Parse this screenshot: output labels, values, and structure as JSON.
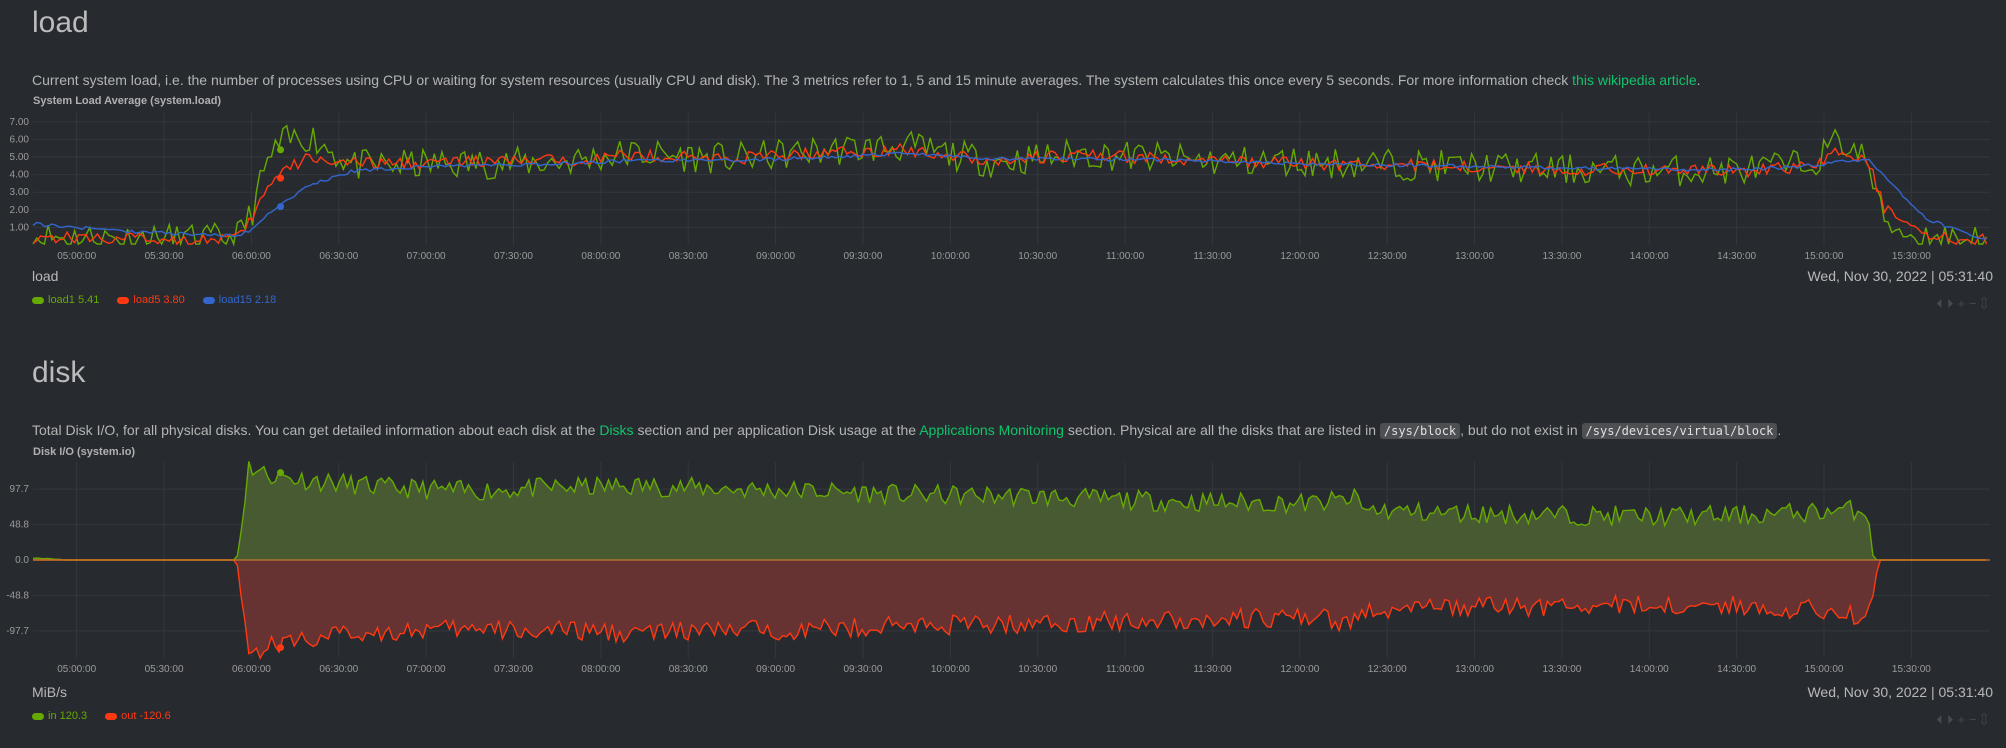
{
  "load": {
    "title": "load",
    "desc_pre": "Current system load, i.e. the number of processes using CPU or waiting for system resources (usually CPU and disk). The 3 metrics refer to 1, 5 and 15 minute averages. The system calculates this once every 5 seconds. For more information check ",
    "desc_link": "this wikipedia article",
    "desc_post": ".",
    "units": "load",
    "date": "Wed, Nov 30, 2022",
    "time": "05:31:40",
    "legend": [
      {
        "name": "load1",
        "value": "5.41",
        "color": "#66aa00"
      },
      {
        "name": "load5",
        "value": "3.80",
        "color": "#fe3912"
      },
      {
        "name": "load15",
        "value": "2.18",
        "color": "#3366cc"
      }
    ]
  },
  "disk": {
    "title": "disk",
    "desc_1": "Total Disk I/O, for all physical disks. You can get detailed information about each disk at the ",
    "link_1": "Disks",
    "desc_2": " section and per application Disk usage at the ",
    "link_2": "Applications Monitoring",
    "desc_3": " section. Physical are all the disks that are listed in ",
    "code_1": "/sys/block",
    "desc_4": ", but do not exist in ",
    "code_2": "/sys/devices/virtual/block",
    "desc_5": ".",
    "units": "MiB/s",
    "date": "Wed, Nov 30, 2022",
    "time": "05:31:40",
    "legend": [
      {
        "name": "in",
        "value": "120.3",
        "color": "#66aa00"
      },
      {
        "name": "out",
        "value": "-120.6",
        "color": "#fe3912"
      }
    ]
  },
  "toolbar_glyphs": "⏴⏵+−⇕",
  "chart_data": [
    {
      "type": "line",
      "title": "System Load Average (system.load)",
      "ylabel": "load",
      "y_ticks": [
        "7.00",
        "6.00",
        "5.00",
        "4.00",
        "3.00",
        "2.00",
        "1.00"
      ],
      "ylim": [
        0,
        7.5
      ],
      "x_ticks": [
        "05:00:00",
        "05:30:00",
        "06:00:00",
        "06:30:00",
        "07:00:00",
        "07:30:00",
        "08:00:00",
        "08:30:00",
        "09:00:00",
        "09:30:00",
        "10:00:00",
        "10:30:00",
        "11:00:00",
        "11:30:00",
        "12:00:00",
        "12:30:00",
        "13:00:00",
        "13:30:00",
        "14:00:00",
        "14:30:00",
        "15:00:00",
        "15:30:00"
      ],
      "xlim_minutes": [
        0,
        672
      ],
      "series": [
        {
          "name": "load1",
          "color": "#66aa00",
          "jitter": 0.9,
          "points": [
            [
              0,
              0.5
            ],
            [
              20,
              0.4
            ],
            [
              60,
              0.3
            ],
            [
              70,
              0.4
            ],
            [
              75,
              1.8
            ],
            [
              80,
              4.5
            ],
            [
              85,
              5.8
            ],
            [
              95,
              6.2
            ],
            [
              110,
              4.5
            ],
            [
              140,
              4.6
            ],
            [
              180,
              4.7
            ],
            [
              205,
              5.2
            ],
            [
              240,
              4.9
            ],
            [
              275,
              5.4
            ],
            [
              300,
              5.6
            ],
            [
              330,
              4.7
            ],
            [
              360,
              5.2
            ],
            [
              400,
              4.8
            ],
            [
              440,
              4.7
            ],
            [
              485,
              4.5
            ],
            [
              520,
              4.3
            ],
            [
              560,
              4.2
            ],
            [
              590,
              4.3
            ],
            [
              610,
              4.6
            ],
            [
              615,
              5.2
            ],
            [
              620,
              6.0
            ],
            [
              630,
              4.8
            ],
            [
              635,
              1.5
            ],
            [
              645,
              0.5
            ],
            [
              670,
              0.4
            ]
          ]
        },
        {
          "name": "load5",
          "color": "#fe3912",
          "jitter": 0.35,
          "points": [
            [
              0,
              0.45
            ],
            [
              60,
              0.3
            ],
            [
              72,
              0.5
            ],
            [
              78,
              2.5
            ],
            [
              84,
              4.0
            ],
            [
              95,
              5.0
            ],
            [
              110,
              4.6
            ],
            [
              140,
              4.7
            ],
            [
              180,
              4.8
            ],
            [
              205,
              5.1
            ],
            [
              240,
              4.9
            ],
            [
              275,
              5.3
            ],
            [
              300,
              5.4
            ],
            [
              330,
              4.8
            ],
            [
              360,
              5.1
            ],
            [
              400,
              4.8
            ],
            [
              440,
              4.6
            ],
            [
              485,
              4.5
            ],
            [
              520,
              4.3
            ],
            [
              560,
              4.3
            ],
            [
              590,
              4.2
            ],
            [
              610,
              4.5
            ],
            [
              620,
              5.3
            ],
            [
              630,
              4.9
            ],
            [
              636,
              2.0
            ],
            [
              645,
              0.8
            ],
            [
              660,
              0.3
            ],
            [
              670,
              0.3
            ]
          ]
        },
        {
          "name": "load15",
          "color": "#3366cc",
          "jitter": 0.1,
          "points": [
            [
              0,
              1.2
            ],
            [
              30,
              0.8
            ],
            [
              70,
              0.5
            ],
            [
              75,
              0.9
            ],
            [
              84,
              2.2
            ],
            [
              95,
              3.4
            ],
            [
              110,
              4.2
            ],
            [
              140,
              4.5
            ],
            [
              180,
              4.6
            ],
            [
              205,
              4.8
            ],
            [
              240,
              4.8
            ],
            [
              275,
              5.0
            ],
            [
              300,
              5.2
            ],
            [
              330,
              4.9
            ],
            [
              360,
              4.9
            ],
            [
              400,
              4.8
            ],
            [
              440,
              4.6
            ],
            [
              485,
              4.5
            ],
            [
              520,
              4.4
            ],
            [
              560,
              4.3
            ],
            [
              590,
              4.3
            ],
            [
              610,
              4.5
            ],
            [
              630,
              4.9
            ],
            [
              638,
              3.5
            ],
            [
              650,
              1.5
            ],
            [
              670,
              0.3
            ]
          ]
        }
      ],
      "highlight_x": 85,
      "highlight_values": [
        5.41,
        3.8,
        2.18
      ]
    },
    {
      "type": "area",
      "title": "Disk I/O (system.io)",
      "ylabel": "MiB/s",
      "y_ticks": [
        "97.7",
        "48.8",
        "0.0",
        "-48.8",
        "-97.7"
      ],
      "y_tick_values": [
        97.7,
        48.8,
        0,
        -48.8,
        -97.7
      ],
      "ylim": [
        -135,
        135
      ],
      "x_ticks": [
        "05:00:00",
        "05:30:00",
        "06:00:00",
        "06:30:00",
        "07:00:00",
        "07:30:00",
        "08:00:00",
        "08:30:00",
        "09:00:00",
        "09:30:00",
        "10:00:00",
        "10:30:00",
        "11:00:00",
        "11:30:00",
        "12:00:00",
        "12:30:00",
        "13:00:00",
        "13:30:00",
        "14:00:00",
        "14:30:00",
        "15:00:00",
        "15:30:00"
      ],
      "xlim_minutes": [
        0,
        672
      ],
      "series": [
        {
          "name": "in",
          "color": "#66aa00",
          "fill": "#4a5d32",
          "jitter": 14,
          "points": [
            [
              0,
              3
            ],
            [
              5,
              2
            ],
            [
              10,
              0
            ],
            [
              70,
              0
            ],
            [
              72,
              60
            ],
            [
              74,
              130
            ],
            [
              80,
              118
            ],
            [
              90,
              112
            ],
            [
              120,
              100
            ],
            [
              150,
              95
            ],
            [
              180,
              100
            ],
            [
              210,
              102
            ],
            [
              240,
              98
            ],
            [
              270,
              95
            ],
            [
              300,
              90
            ],
            [
              340,
              88
            ],
            [
              360,
              85
            ],
            [
              380,
              82
            ],
            [
              400,
              80
            ],
            [
              440,
              78
            ],
            [
              455,
              85
            ],
            [
              456,
              70
            ],
            [
              480,
              65
            ],
            [
              520,
              62
            ],
            [
              560,
              60
            ],
            [
              590,
              62
            ],
            [
              620,
              68
            ],
            [
              630,
              70
            ],
            [
              632,
              0
            ],
            [
              672,
              0
            ]
          ]
        },
        {
          "name": "out",
          "color": "#fe3912",
          "fill": "#6a3433",
          "jitter": 14,
          "points": [
            [
              0,
              0
            ],
            [
              70,
              0
            ],
            [
              72,
              -60
            ],
            [
              74,
              -130
            ],
            [
              80,
              -120
            ],
            [
              90,
              -110
            ],
            [
              120,
              -98
            ],
            [
              150,
              -96
            ],
            [
              180,
              -98
            ],
            [
              210,
              -100
            ],
            [
              240,
              -97
            ],
            [
              270,
              -95
            ],
            [
              300,
              -90
            ],
            [
              340,
              -88
            ],
            [
              360,
              -86
            ],
            [
              380,
              -83
            ],
            [
              400,
              -82
            ],
            [
              440,
              -80
            ],
            [
              455,
              -88
            ],
            [
              456,
              -70
            ],
            [
              480,
              -66
            ],
            [
              520,
              -64
            ],
            [
              560,
              -62
            ],
            [
              590,
              -64
            ],
            [
              620,
              -70
            ],
            [
              630,
              -80
            ],
            [
              634,
              0
            ],
            [
              672,
              0
            ]
          ]
        }
      ],
      "highlight_x": 85,
      "highlight_values": [
        120.3,
        -120.6
      ]
    }
  ]
}
